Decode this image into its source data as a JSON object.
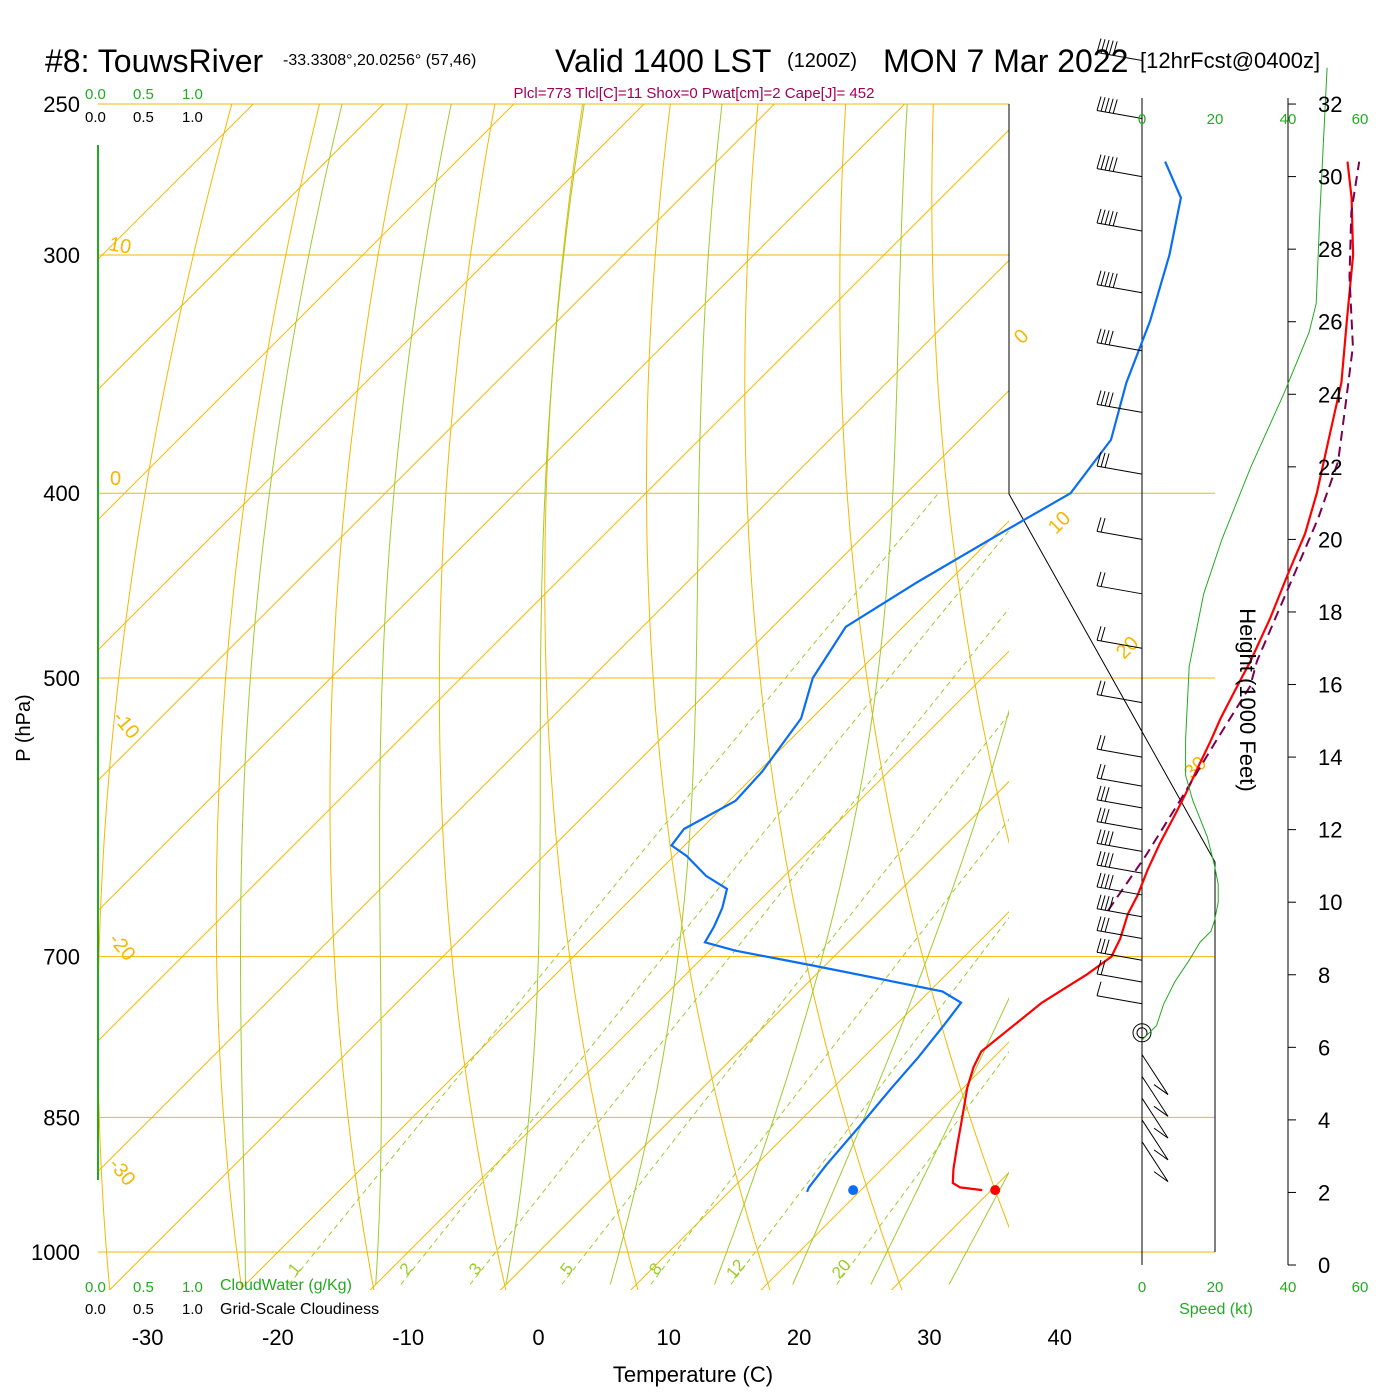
{
  "header": {
    "station": "#8: TouwsRiver",
    "coords": "-33.3308°,20.0256° (57,46)",
    "valid_label": "Valid 1400 LST",
    "utc_label": "(1200Z)",
    "date": "MON 7 Mar 2022",
    "forecast": "[12hrFcst@0400z]",
    "params": "Plcl=773 Tlcl[C]=11 Shox=0 Pwat[cm]=2 Cape[J]= 452"
  },
  "scales": {
    "cloud_top": [
      "0.0",
      "0.5",
      "1.0"
    ],
    "cloudiness_top": [
      "0.0",
      "0.5",
      "1.0"
    ],
    "cloud_bottom": [
      "0.0",
      "0.5",
      "1.0"
    ],
    "cloudiness_bottom": [
      "0.0",
      "0.5",
      "1.0"
    ],
    "cloudwater_label": "CloudWater (g/Kg)",
    "cloudiness_label": "Grid-Scale Cloudiness",
    "speed_ticks": [
      "0",
      "20",
      "40",
      "60"
    ],
    "speed_label": "Speed (kt)"
  },
  "colors": {
    "isotherm": "#f5b800",
    "mixing_ratio": "#9ccc2c",
    "moist_adiabat": "#9ccc2c",
    "temperature": "#ff0000",
    "dewpoint": "#0a6ef2",
    "parcel": "#7a0050",
    "height_profile": "#22aa22",
    "cloud_scale": "#22aa22",
    "title_params": "#a0005a"
  },
  "chart_data": {
    "type": "line",
    "subtype": "skew-T log-p sounding",
    "xlabel": "Temperature (C)",
    "ylabel": "P (hPa)",
    "y2label": "Height (1000 Feet)",
    "x_ticks": [
      -30,
      -20,
      -10,
      0,
      10,
      20,
      30,
      40
    ],
    "pressure_ticks": [
      250,
      300,
      400,
      500,
      700,
      850,
      1000
    ],
    "height_ticks": [
      0,
      2,
      4,
      6,
      8,
      10,
      12,
      14,
      16,
      18,
      20,
      22,
      24,
      26,
      28,
      30,
      32
    ],
    "dry_adiabat_labels": [
      "10",
      "0",
      "-10",
      "-20",
      "-30",
      "0",
      "10",
      "20",
      "30"
    ],
    "mixing_ratio_labels": [
      "1",
      "2",
      "3",
      "5",
      "8",
      "12",
      "20"
    ],
    "series": [
      {
        "name": "Temperature",
        "points": [
          [
            29.3,
            928
          ],
          [
            27.4,
            925
          ],
          [
            26.5,
            920
          ],
          [
            25.5,
            905
          ],
          [
            24.0,
            880
          ],
          [
            22.5,
            855
          ],
          [
            20.3,
            820
          ],
          [
            19.2,
            800
          ],
          [
            18.6,
            785
          ],
          [
            19.5,
            740
          ],
          [
            20.8,
            715
          ],
          [
            21.3,
            700
          ],
          [
            20.6,
            685
          ],
          [
            19.3,
            665
          ],
          [
            18.6,
            650
          ],
          [
            17.4,
            630
          ],
          [
            16.3,
            610
          ],
          [
            15.3,
            590
          ],
          [
            14.5,
            575
          ],
          [
            13.3,
            555
          ],
          [
            12.4,
            540
          ],
          [
            11.4,
            525
          ],
          [
            10.2,
            505
          ],
          [
            9.3,
            490
          ],
          [
            7.5,
            465
          ],
          [
            5.4,
            440
          ],
          [
            3.7,
            420
          ],
          [
            1.5,
            400
          ],
          [
            -1.7,
            375
          ],
          [
            -5.1,
            350
          ],
          [
            -9.4,
            325
          ],
          [
            -14.0,
            300
          ],
          [
            -18.5,
            280
          ],
          [
            -21.6,
            268
          ]
        ]
      },
      {
        "name": "Dewpoint",
        "points": [
          [
            16.0,
            930
          ],
          [
            15.8,
            925
          ],
          [
            15.4,
            900
          ],
          [
            15.0,
            860
          ],
          [
            14.5,
            820
          ],
          [
            14.2,
            790
          ],
          [
            13.7,
            760
          ],
          [
            13.3,
            740
          ],
          [
            11.0,
            730
          ],
          [
            -0.7,
            708
          ],
          [
            -8.0,
            695
          ],
          [
            -11.0,
            688
          ],
          [
            -11.5,
            675
          ],
          [
            -12.3,
            660
          ],
          [
            -13.4,
            645
          ],
          [
            -16.0,
            635
          ],
          [
            -19.0,
            620
          ],
          [
            -21.0,
            612
          ],
          [
            -21.3,
            600
          ],
          [
            -19.5,
            580
          ],
          [
            -19.7,
            560
          ],
          [
            -20.8,
            525
          ],
          [
            -23.0,
            500
          ],
          [
            -24.4,
            470
          ],
          [
            -22.3,
            445
          ],
          [
            -19.7,
            420
          ],
          [
            -17.4,
            400
          ],
          [
            -18.4,
            375
          ],
          [
            -21.6,
            350
          ],
          [
            -24.5,
            325
          ],
          [
            -28.1,
            300
          ],
          [
            -31.6,
            280
          ],
          [
            -35.6,
            268
          ]
        ]
      },
      {
        "name": "Parcel",
        "points": [
          [
            17.5,
            662
          ],
          [
            16.2,
            620
          ],
          [
            14.6,
            580
          ],
          [
            12.8,
            540
          ],
          [
            11.2,
            505
          ],
          [
            9.8,
            490
          ],
          [
            7.9,
            465
          ],
          [
            5.9,
            440
          ],
          [
            3.5,
            412
          ],
          [
            0.7,
            385
          ],
          [
            -3.0,
            360
          ],
          [
            -7.0,
            335
          ],
          [
            -12.6,
            308
          ],
          [
            -17.4,
            285
          ],
          [
            -20.7,
            268
          ]
        ]
      }
    ],
    "surface_temperature": 30.3,
    "surface_dewpoint": 19.4,
    "surface_pressure": 928,
    "height_profile_kft": [
      [
        0,
        6.2
      ],
      [
        4,
        6.6
      ],
      [
        6,
        7.2
      ],
      [
        9,
        7.8
      ],
      [
        13,
        8.4
      ],
      [
        16,
        8.9
      ],
      [
        19,
        9.2
      ],
      [
        20,
        9.5
      ],
      [
        21,
        10.0
      ],
      [
        21,
        10.5
      ],
      [
        20,
        11.0
      ],
      [
        18,
        11.8
      ],
      [
        16,
        12.3
      ],
      [
        14,
        12.8
      ],
      [
        12,
        13.5
      ],
      [
        12,
        14.5
      ],
      [
        13,
        16.5
      ],
      [
        17,
        18.5
      ],
      [
        22,
        20.0
      ],
      [
        30,
        22.0
      ],
      [
        39,
        24.0
      ],
      [
        46,
        25.7
      ],
      [
        48,
        26.5
      ],
      [
        49,
        29.0
      ],
      [
        50,
        31.0
      ],
      [
        51,
        33.0
      ]
    ],
    "wind_barbs": [
      {
        "kft": 3.4,
        "speed": 6
      },
      {
        "kft": 4.0,
        "speed": 8
      },
      {
        "kft": 4.6,
        "speed": 10
      },
      {
        "kft": 5.2,
        "speed": 10
      },
      {
        "kft": 5.8,
        "speed": 8
      },
      {
        "kft": 6.4,
        "speed": 0
      },
      {
        "kft": 7.2,
        "speed": 10
      },
      {
        "kft": 7.8,
        "speed": 20
      },
      {
        "kft": 8.4,
        "speed": 25
      },
      {
        "kft": 9.0,
        "speed": 30
      },
      {
        "kft": 9.6,
        "speed": 35
      },
      {
        "kft": 10.2,
        "speed": 40
      },
      {
        "kft": 10.8,
        "speed": 40
      },
      {
        "kft": 11.4,
        "speed": 35
      },
      {
        "kft": 12.0,
        "speed": 30
      },
      {
        "kft": 12.6,
        "speed": 25
      },
      {
        "kft": 13.2,
        "speed": 20
      },
      {
        "kft": 14.0,
        "speed": 15
      },
      {
        "kft": 15.5,
        "speed": 15
      },
      {
        "kft": 17.0,
        "speed": 15
      },
      {
        "kft": 18.5,
        "speed": 15
      },
      {
        "kft": 20.0,
        "speed": 15
      },
      {
        "kft": 21.8,
        "speed": 30
      },
      {
        "kft": 23.5,
        "speed": 35
      },
      {
        "kft": 25.2,
        "speed": 40
      },
      {
        "kft": 26.8,
        "speed": 45
      },
      {
        "kft": 28.5,
        "speed": 50
      },
      {
        "kft": 30.0,
        "speed": 55
      },
      {
        "kft": 31.6,
        "speed": 55
      },
      {
        "kft": 33.2,
        "speed": 55
      }
    ]
  }
}
